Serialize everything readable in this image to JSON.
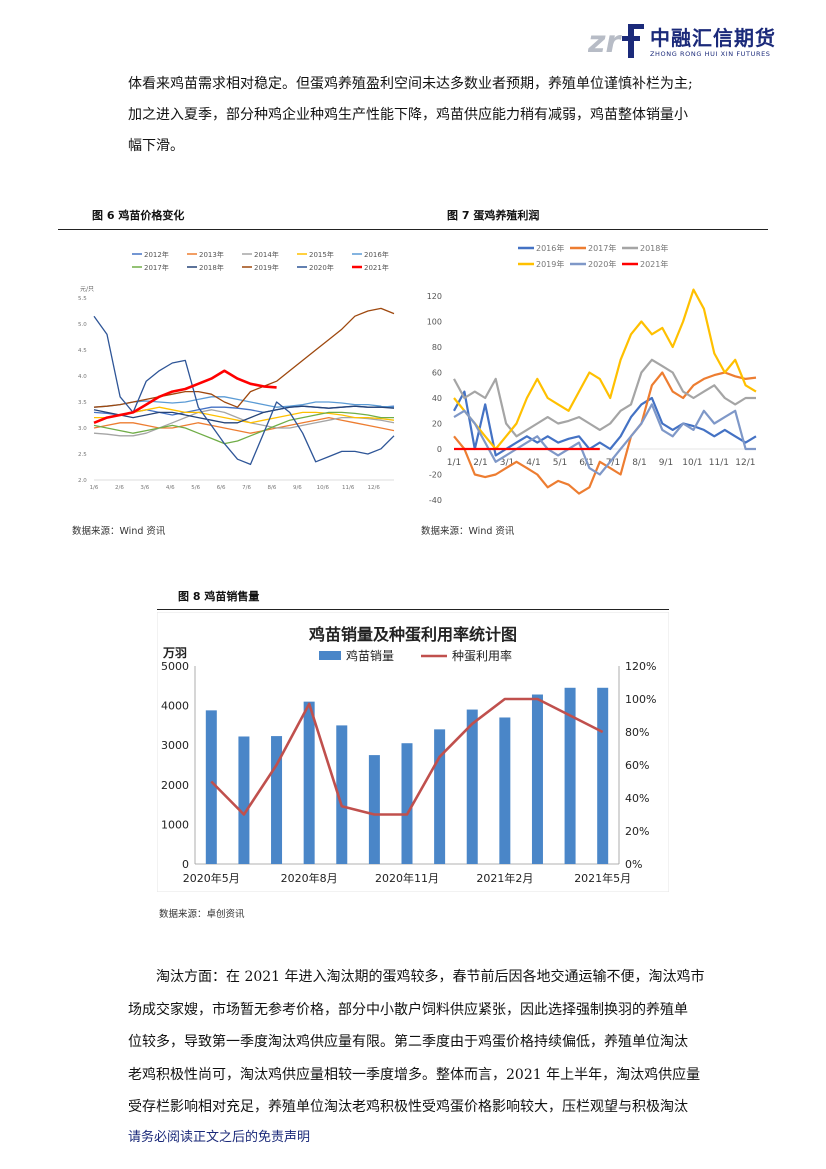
{
  "header": {
    "logo_text": "中融汇信期货",
    "logo_sub": "ZHONG RONG HUI XIN FUTURES"
  },
  "paragraph1": [
    "体看来鸡苗需求相对稳定。但蛋鸡养殖盈利空间未达多数业者预期，养殖单位谨慎补栏为主;",
    "加之进入夏季，部分种鸡企业种鸡生产性能下降，鸡苗供应能力稍有减弱，鸡苗整体销量小",
    "幅下滑。"
  ],
  "fig6": {
    "title": "图 6  鸡苗价格变化",
    "source": "数据来源：Wind 资讯",
    "chart_data": {
      "type": "line",
      "ylabel": "元/只",
      "ylim": [
        2.0,
        5.5
      ],
      "yticks": [
        "5.5",
        "5.0",
        "4.5",
        "4.0",
        "3.5",
        "3.0",
        "2.5",
        "2.0"
      ],
      "xticks": [
        "1/6",
        "2/6",
        "3/6",
        "4/6",
        "5/6",
        "6/6",
        "7/6",
        "8/6",
        "9/6",
        "10/6",
        "11/6",
        "12/6"
      ],
      "series": [
        {
          "name": "2012年",
          "color": "#4472c4",
          "values": [
            3.3,
            3.28,
            3.25,
            3.3,
            3.35,
            3.3,
            3.25,
            3.3,
            3.35,
            3.4,
            3.4,
            3.38,
            3.35,
            3.3,
            3.35,
            3.4,
            3.42,
            3.4,
            3.38,
            3.4,
            3.42,
            3.4,
            3.4,
            3.42
          ]
        },
        {
          "name": "2013年",
          "color": "#ed7d31",
          "values": [
            3.0,
            3.05,
            3.1,
            3.1,
            3.05,
            3.0,
            3.0,
            3.05,
            3.1,
            3.05,
            3.0,
            2.95,
            2.9,
            2.95,
            3.0,
            3.05,
            3.1,
            3.15,
            3.2,
            3.15,
            3.1,
            3.05,
            3.0,
            2.95
          ]
        },
        {
          "name": "2014年",
          "color": "#a5a5a5",
          "values": [
            2.9,
            2.88,
            2.85,
            2.85,
            2.9,
            3.0,
            3.1,
            3.2,
            3.3,
            3.35,
            3.3,
            3.2,
            3.1,
            3.05,
            3.0,
            3.0,
            3.05,
            3.1,
            3.15,
            3.2,
            3.2,
            3.18,
            3.15,
            3.1
          ]
        },
        {
          "name": "2015年",
          "color": "#ffc000",
          "values": [
            3.2,
            3.2,
            3.25,
            3.3,
            3.35,
            3.4,
            3.35,
            3.3,
            3.3,
            3.25,
            3.2,
            3.15,
            3.1,
            3.15,
            3.2,
            3.25,
            3.3,
            3.3,
            3.28,
            3.25,
            3.2,
            3.2,
            3.18,
            3.15
          ]
        },
        {
          "name": "2016年",
          "color": "#5b9bd5",
          "values": [
            3.4,
            3.42,
            3.45,
            3.5,
            3.52,
            3.5,
            3.48,
            3.5,
            3.55,
            3.6,
            3.6,
            3.55,
            3.5,
            3.45,
            3.4,
            3.42,
            3.45,
            3.5,
            3.5,
            3.48,
            3.45,
            3.45,
            3.42,
            3.4
          ]
        },
        {
          "name": "2017年",
          "color": "#70ad47",
          "values": [
            3.05,
            3.0,
            2.95,
            2.9,
            2.95,
            3.0,
            3.05,
            3.0,
            2.9,
            2.8,
            2.7,
            2.75,
            2.85,
            2.95,
            3.05,
            3.15,
            3.2,
            3.25,
            3.3,
            3.3,
            3.28,
            3.25,
            3.2,
            3.2
          ]
        },
        {
          "name": "2018年",
          "color": "#264478",
          "values": [
            3.35,
            3.3,
            3.25,
            3.2,
            3.25,
            3.3,
            3.3,
            3.25,
            3.2,
            3.15,
            3.1,
            3.1,
            3.2,
            3.3,
            3.35,
            3.4,
            3.42,
            3.4,
            3.38,
            3.4,
            3.42,
            3.4,
            3.4,
            3.38
          ]
        },
        {
          "name": "2019年",
          "color": "#9e480e",
          "values": [
            3.4,
            3.42,
            3.45,
            3.5,
            3.55,
            3.6,
            3.65,
            3.7,
            3.7,
            3.65,
            3.5,
            3.4,
            3.7,
            3.8,
            3.9,
            4.1,
            4.3,
            4.5,
            4.7,
            4.9,
            5.15,
            5.25,
            5.3,
            5.2
          ]
        },
        {
          "name": "2020年",
          "color": "#2e5597",
          "values": [
            5.15,
            4.8,
            3.6,
            3.3,
            3.9,
            4.1,
            4.25,
            4.3,
            3.4,
            3.05,
            2.7,
            2.4,
            2.3,
            2.9,
            3.5,
            3.3,
            2.9,
            2.35,
            2.45,
            2.55,
            2.55,
            2.5,
            2.6,
            2.85
          ]
        },
        {
          "name": "2021年",
          "color": "#ff0000",
          "values": [
            3.1,
            3.2,
            3.25,
            3.3,
            3.45,
            3.6,
            3.7,
            3.75,
            3.85,
            3.95,
            4.1,
            3.95,
            3.85,
            3.8,
            3.78
          ]
        }
      ]
    }
  },
  "fig7": {
    "title": "图 7  蛋鸡养殖利润",
    "source": "数据来源：Wind 资讯",
    "chart_data": {
      "type": "line",
      "ylim": [
        -40,
        120
      ],
      "yticks": [
        "120",
        "100",
        "80",
        "60",
        "40",
        "20",
        "0",
        "-20",
        "-40"
      ],
      "xticks": [
        "1/1",
        "2/1",
        "3/1",
        "4/1",
        "5/1",
        "6/1",
        "7/1",
        "8/1",
        "9/1",
        "10/1",
        "11/1",
        "12/1"
      ],
      "series": [
        {
          "name": "2016年",
          "color": "#4472c4",
          "values": [
            30,
            45,
            0,
            35,
            -5,
            0,
            5,
            10,
            5,
            10,
            5,
            8,
            10,
            0,
            5,
            0,
            10,
            25,
            35,
            40,
            20,
            15,
            20,
            18,
            15,
            10,
            15,
            10,
            5,
            10
          ]
        },
        {
          "name": "2017年",
          "color": "#ed7d31",
          "values": [
            10,
            0,
            -20,
            -22,
            -20,
            -15,
            -10,
            -15,
            -20,
            -30,
            -25,
            -28,
            -35,
            -30,
            -10,
            -15,
            -20,
            10,
            20,
            50,
            60,
            45,
            40,
            50,
            55,
            58,
            60,
            57,
            55,
            56
          ]
        },
        {
          "name": "2018年",
          "color": "#a5a5a5",
          "values": [
            55,
            40,
            45,
            40,
            55,
            20,
            10,
            15,
            20,
            25,
            20,
            22,
            25,
            20,
            15,
            20,
            30,
            35,
            60,
            70,
            65,
            60,
            45,
            40,
            45,
            50,
            40,
            35,
            40,
            40
          ]
        },
        {
          "name": "2019年",
          "color": "#ffc000",
          "values": [
            40,
            30,
            20,
            10,
            0,
            10,
            20,
            40,
            55,
            40,
            35,
            30,
            45,
            60,
            55,
            40,
            70,
            90,
            100,
            90,
            95,
            80,
            100,
            125,
            110,
            75,
            60,
            70,
            50,
            45
          ]
        },
        {
          "name": "2020年",
          "color": "#7f98c8",
          "values": [
            25,
            30,
            20,
            5,
            -10,
            -5,
            0,
            5,
            10,
            0,
            -5,
            0,
            5,
            -15,
            -20,
            -10,
            0,
            10,
            20,
            35,
            15,
            10,
            20,
            15,
            30,
            20,
            25,
            30,
            0,
            0
          ]
        },
        {
          "name": "2021年",
          "color": "#ff0000",
          "values": [
            0,
            0,
            0,
            0,
            0,
            0,
            0,
            0,
            0,
            0,
            0,
            0,
            0,
            0,
            0
          ]
        }
      ]
    }
  },
  "fig8": {
    "title": "图 8  鸡苗销售量",
    "chart_title": "鸡苗销量及种蛋利用率统计图",
    "unit_left": "万羽",
    "legend_bar": "鸡苗销量",
    "legend_line": "种蛋利用率",
    "source": "数据来源：卓创资讯",
    "chart_data": {
      "type": "bar",
      "categories": [
        "2020年5月",
        "2020年6月",
        "2020年7月",
        "2020年8月",
        "2020年9月",
        "2020年10月",
        "2020年11月",
        "2020年12月",
        "2021年1月",
        "2021年2月",
        "2021年3月",
        "2021年4月",
        "2021年5月"
      ],
      "xtick_labels": [
        "2020年5月",
        "2020年8月",
        "2020年11月",
        "2021年2月",
        "2021年5月"
      ],
      "series": [
        {
          "name": "鸡苗销量",
          "color": "#4a86c8",
          "values": [
            3880,
            3220,
            3230,
            4100,
            3500,
            2750,
            3050,
            3400,
            3900,
            3700,
            4280,
            4450,
            4450
          ]
        },
        {
          "name": "种蛋利用率",
          "color": "#c0504d",
          "values": [
            0.5,
            0.3,
            0.6,
            0.97,
            0.35,
            0.3,
            0.3,
            0.65,
            0.85,
            1.0,
            1.0,
            0.9,
            0.8
          ]
        }
      ],
      "ylim_left": [
        0,
        5000
      ],
      "ylim_right": [
        0,
        1.2
      ],
      "yticks_left": [
        "5000",
        "4000",
        "3000",
        "2000",
        "1000",
        "0"
      ],
      "yticks_right": [
        "120%",
        "100%",
        "80%",
        "60%",
        "40%",
        "20%",
        "0%"
      ]
    }
  },
  "paragraph2": [
    "淘汰方面：在 2021 年进入淘汰期的蛋鸡较多，春节前后因各地交通运输不便，淘汰鸡市",
    "场成交家嫂，市场暂无参考价格，部分中小散户饲料供应紧张，因此选择强制换羽的养殖单",
    "位较多，导致第一季度淘汰鸡供应量有限。第二季度由于鸡蛋价格持续偏低，养殖单位淘汰",
    "老鸡积极性尚可，淘汰鸡供应量相较一季度增多。整体而言，2021 年上半年，淘汰鸡供应量",
    "受存栏影响相对充足，养殖单位淘汰老鸡积极性受鸡蛋价格影响较大，压栏观望与积极淘汰"
  ],
  "footer": "请务必阅读正文之后的免责声明"
}
